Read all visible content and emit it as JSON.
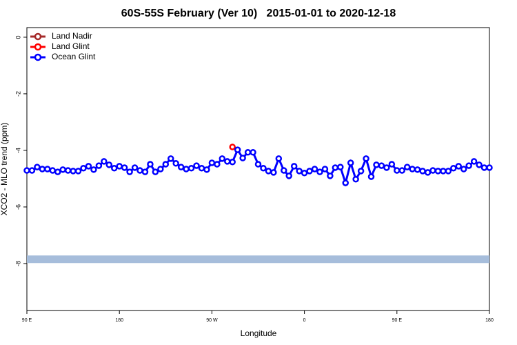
{
  "chart_data": {
    "type": "line",
    "title": "60S-55S February (Ver 10)   2015-01-01 to 2020-12-18",
    "xlabel": "Longitude",
    "ylabel": "XCO2 - MLO trend (ppm)",
    "xlim": [
      90,
      540
    ],
    "ylim": [
      -9.66,
      0.34
    ],
    "xticks": [
      {
        "value": 90,
        "label": "90 E"
      },
      {
        "value": 180,
        "label": "180"
      },
      {
        "value": 270,
        "label": "90 W"
      },
      {
        "value": 360,
        "label": "0"
      },
      {
        "value": 450,
        "label": "90 E"
      },
      {
        "value": 540,
        "label": "180"
      }
    ],
    "yticks": [
      0,
      -2,
      -4,
      -6,
      -8
    ],
    "legend": "top-left",
    "hline": {
      "value": -7.85,
      "color": "#a6bddb"
    },
    "series": [
      {
        "name": "Land Nadir",
        "color": "#a52a2a",
        "x": [],
        "values": []
      },
      {
        "name": "Land Glint",
        "color": "#ff0000",
        "x": [
          290
        ],
        "values": [
          -3.88
        ]
      },
      {
        "name": "Ocean Glint",
        "color": "#0000ff",
        "x": [
          90,
          95,
          100,
          105,
          110,
          115,
          120,
          125,
          130,
          135,
          140,
          145,
          150,
          155,
          160,
          165,
          170,
          175,
          180,
          185,
          190,
          195,
          200,
          205,
          210,
          215,
          220,
          225,
          230,
          235,
          240,
          245,
          250,
          255,
          260,
          265,
          270,
          275,
          280,
          285,
          290,
          295,
          300,
          305,
          310,
          315,
          320,
          325,
          330,
          335,
          340,
          345,
          350,
          355,
          360,
          365,
          370,
          375,
          380,
          385,
          390,
          395,
          400,
          405,
          410,
          415,
          420,
          425,
          430,
          435,
          440,
          445,
          450,
          455,
          460,
          465,
          470,
          475,
          480,
          485,
          490,
          495,
          500,
          505,
          510,
          515,
          520,
          525,
          530,
          535,
          540
        ],
        "values": [
          -4.71,
          -4.71,
          -4.59,
          -4.66,
          -4.66,
          -4.71,
          -4.76,
          -4.68,
          -4.71,
          -4.73,
          -4.73,
          -4.63,
          -4.56,
          -4.68,
          -4.54,
          -4.39,
          -4.51,
          -4.63,
          -4.56,
          -4.61,
          -4.76,
          -4.61,
          -4.71,
          -4.76,
          -4.49,
          -4.76,
          -4.66,
          -4.49,
          -4.29,
          -4.46,
          -4.59,
          -4.66,
          -4.63,
          -4.54,
          -4.63,
          -4.68,
          -4.44,
          -4.49,
          -4.29,
          -4.39,
          -4.41,
          -3.98,
          -4.27,
          -4.07,
          -4.07,
          -4.49,
          -4.63,
          -4.73,
          -4.78,
          -4.29,
          -4.71,
          -4.9,
          -4.56,
          -4.73,
          -4.8,
          -4.73,
          -4.66,
          -4.76,
          -4.66,
          -4.9,
          -4.61,
          -4.59,
          -5.15,
          -4.44,
          -5.02,
          -4.73,
          -4.29,
          -4.93,
          -4.51,
          -4.54,
          -4.61,
          -4.49,
          -4.71,
          -4.71,
          -4.59,
          -4.66,
          -4.68,
          -4.73,
          -4.78,
          -4.71,
          -4.73,
          -4.73,
          -4.73,
          -4.63,
          -4.56,
          -4.66,
          -4.54,
          -4.39,
          -4.51,
          -4.61,
          -4.61
        ]
      }
    ]
  }
}
